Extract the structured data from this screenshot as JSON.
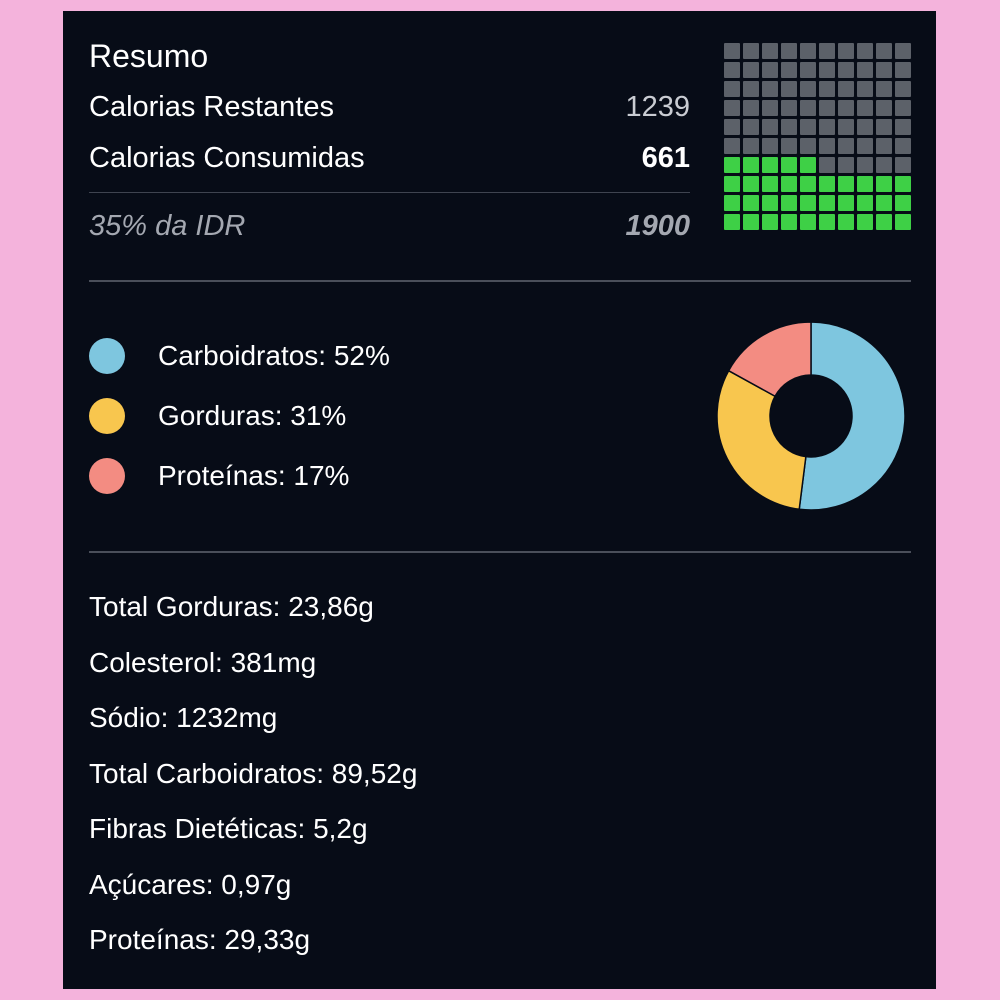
{
  "summary": {
    "title": "Resumo",
    "remaining_label": "Calorias Restantes",
    "remaining_value": "1239",
    "consumed_label": "Calorias Consumidas",
    "consumed_value": "661",
    "idr_label": "35% da IDR",
    "idr_value": "1900",
    "waffle": {
      "total_cells": 100,
      "filled_cells": 35,
      "filled_color": "#3ed046",
      "empty_color": "#5c6169"
    }
  },
  "macros": {
    "legend": [
      {
        "label": "Carboidratos: 52%",
        "color": "#7ec6df"
      },
      {
        "label": "Gorduras: 31%",
        "color": "#f8c64e"
      },
      {
        "label": "Proteínas: 17%",
        "color": "#f38c82"
      }
    ]
  },
  "chart_data": {
    "type": "pie",
    "variant": "donut",
    "categories": [
      "Carboidratos",
      "Gorduras",
      "Proteínas"
    ],
    "values": [
      52,
      31,
      17
    ],
    "colors": [
      "#7ec6df",
      "#f8c64e",
      "#f38c82"
    ]
  },
  "nutrients": [
    "Total Gorduras: 23,86g",
    "Colesterol: 381mg",
    "Sódio: 1232mg",
    "Total Carboidratos: 89,52g",
    "Fibras Dietéticas: 5,2g",
    "Açúcares: 0,97g",
    "Proteínas: 29,33g"
  ]
}
